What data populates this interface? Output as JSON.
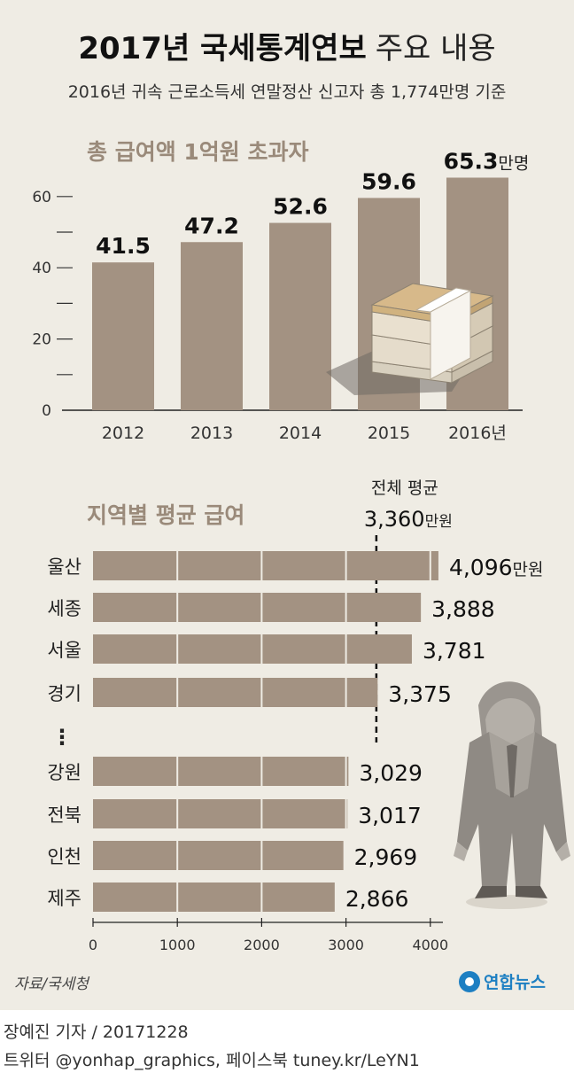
{
  "header": {
    "title_bold": "2017년 국세통계연보",
    "title_light": "주요 내용",
    "subtitle": "2016년 귀속 근로소득세 연말정산 신고자 총 1,774만명 기준"
  },
  "chart_data": [
    {
      "type": "bar",
      "title": "총 급여액 1억원 초과자",
      "categories": [
        "2012",
        "2013",
        "2014",
        "2015",
        "2016년"
      ],
      "values": [
        41.5,
        47.2,
        52.6,
        59.6,
        65.3
      ],
      "value_labels": [
        "41.5",
        "47.2",
        "52.6",
        "59.6",
        "65.3"
      ],
      "unit": "만명",
      "ylim": [
        0,
        65.3
      ],
      "yticks": [
        "0",
        "20",
        "40",
        "60"
      ],
      "ytick_values": [
        0,
        20,
        40,
        60
      ],
      "minor_ticks": [
        10,
        30,
        50
      ],
      "colors": {
        "bar": "#a39282"
      }
    },
    {
      "type": "bar",
      "orientation": "horizontal",
      "title": "지역별 평균 급여",
      "categories": [
        "울산",
        "세종",
        "서울",
        "경기",
        "강원",
        "전북",
        "인천",
        "제주"
      ],
      "values": [
        4096,
        3888,
        3781,
        3375,
        3029,
        3017,
        2969,
        2866
      ],
      "value_labels": [
        "4,096",
        "3,888",
        "3,781",
        "3,375",
        "3,029",
        "3,017",
        "2,969",
        "2,866"
      ],
      "unit": "만원",
      "ellipsis": "⋮",
      "xlim": [
        0,
        4000
      ],
      "xticks": [
        "0",
        "1000",
        "2000",
        "3000",
        "4000"
      ],
      "xtick_values": [
        0,
        1000,
        2000,
        3000,
        4000
      ],
      "average": {
        "label": "전체 평균",
        "value": 3360,
        "value_label": "3,360",
        "unit": "만원"
      },
      "colors": {
        "bar": "#a39282"
      }
    }
  ],
  "source": "자료/국세청",
  "logo": {
    "text": "연합뉴스",
    "color": "#1d7fc2"
  },
  "footer": {
    "byline": "장예진 기자 / 20171228",
    "social": "트위터 @yonhap_graphics, 페이스북 tuney.kr/LeYN1"
  }
}
